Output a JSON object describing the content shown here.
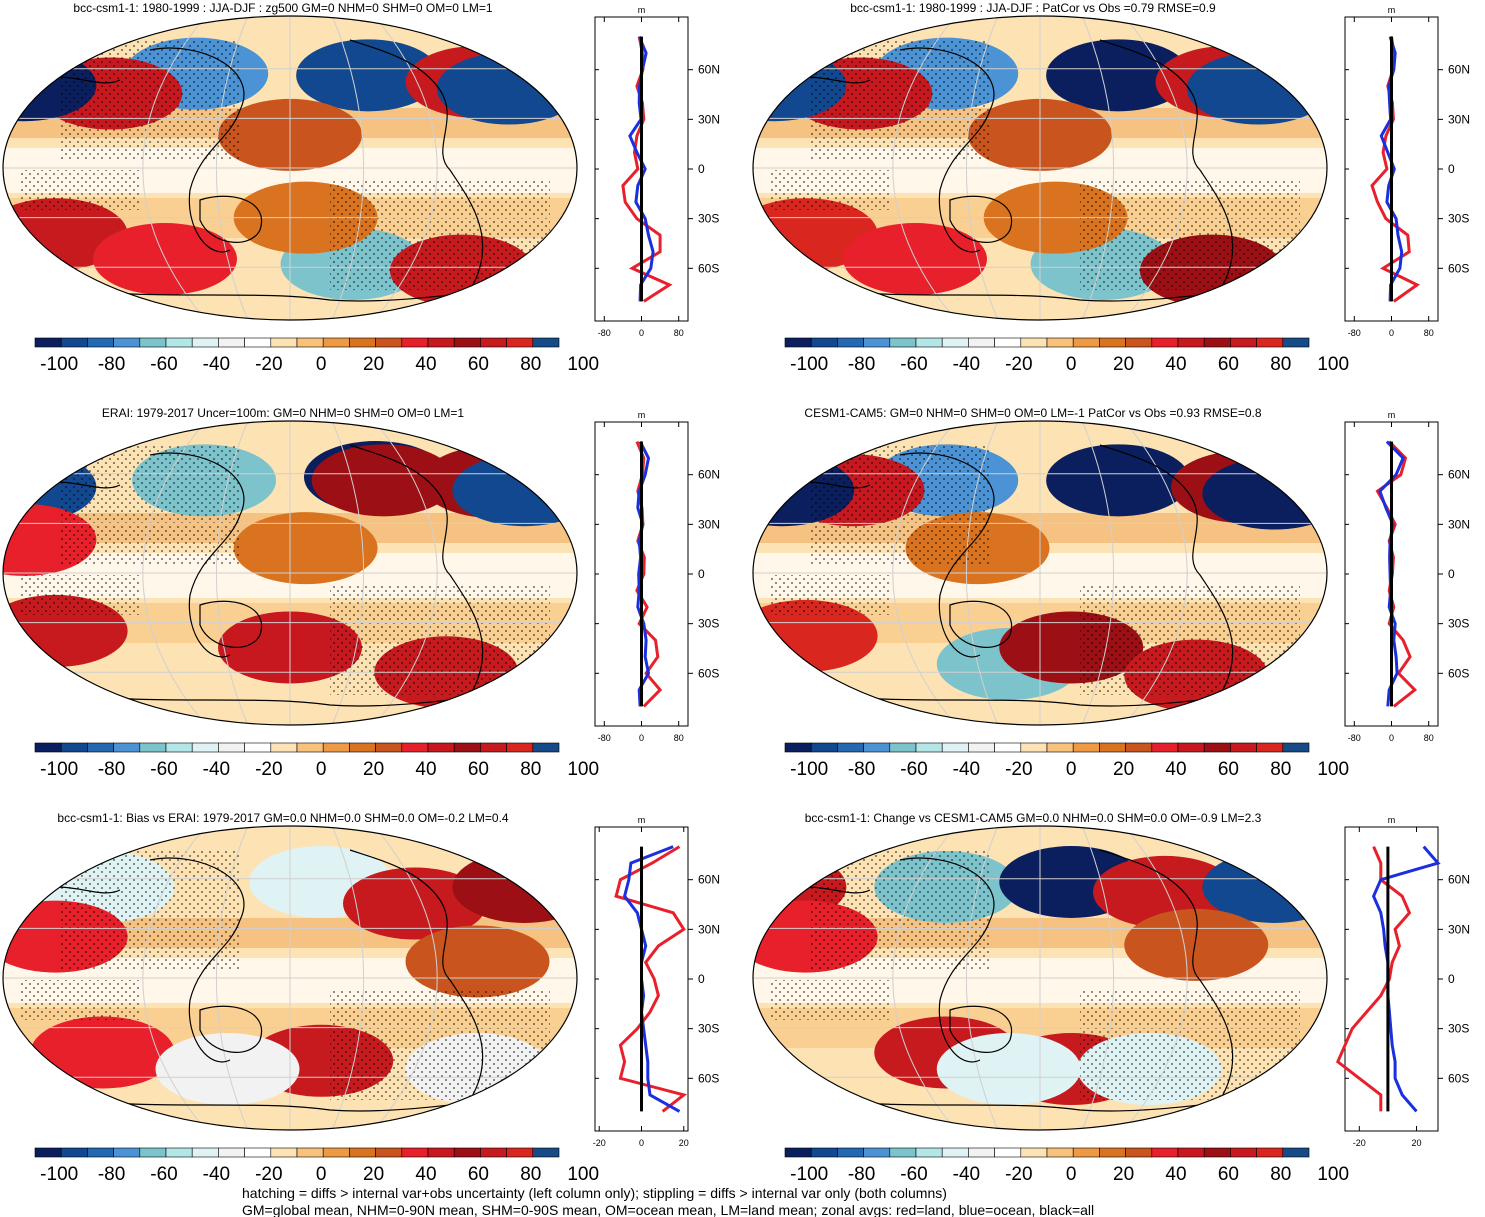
{
  "colorbar": {
    "colors": [
      "#0b1f5e",
      "#12488f",
      "#2468b2",
      "#4b93d4",
      "#7cc3cc",
      "#b3e6e6",
      "#dff3f4",
      "#f2f2f2",
      "#ffffff",
      "#fde3b4",
      "#f9c27c",
      "#ee9a45",
      "#d9731f",
      "#c9541d",
      "#e8202b",
      "#c7171f",
      "#9c0f14",
      "#c61a1e",
      "#d9271f",
      "#164b87"
    ],
    "tick_labels": [
      "-100",
      "-80",
      "-60",
      "-40",
      "-20",
      "0",
      "20",
      "40",
      "60",
      "80",
      "100"
    ]
  },
  "zonal_axis": {
    "unit": "m",
    "lat_labels": [
      "60N",
      "30N",
      "0",
      "30S",
      "60S"
    ],
    "lats": [
      60,
      30,
      0,
      -30,
      -60
    ]
  },
  "footnote": [
    "hatching = diffs > internal var+obs uncertainty (left column only); stippling = diffs > internal var only (both columns)",
    "GM=global mean, NHM=0-90N mean, SHM=0-90S mean, OM=ocean mean, LM=land mean; zonal avgs: red=land, blue=ocean, black=all"
  ],
  "chart_data": [
    {
      "type": "heatmap",
      "title": "bcc-csm1-1: 1980-1999 : JJA-DJF : zg500 GM=0 NHM=0 SHM=0 OM=0 LM=1",
      "zonal_xticks": [
        -80,
        0,
        80
      ],
      "zonal_xlim": [
        -100,
        100
      ],
      "blobs": [
        {
          "lon": -60,
          "lat": 57,
          "v": -70
        },
        {
          "lon": 50,
          "lat": 56,
          "v": -90
        },
        {
          "lon": -115,
          "lat": 45,
          "v": 55
        },
        {
          "lon": 120,
          "lat": 52,
          "v": 70
        },
        {
          "lon": -170,
          "lat": 50,
          "v": -95
        },
        {
          "lon": 140,
          "lat": 48,
          "v": -90
        },
        {
          "lon": 0,
          "lat": 20,
          "v": 35
        },
        {
          "lon": -150,
          "lat": -40,
          "v": 75
        },
        {
          "lon": 40,
          "lat": -58,
          "v": -55
        },
        {
          "lon": 110,
          "lat": -62,
          "v": 70
        },
        {
          "lon": -80,
          "lat": -55,
          "v": 40
        },
        {
          "lon": 10,
          "lat": -30,
          "v": 25
        }
      ],
      "land": [
        [
          -5,
          2,
          3,
          -10,
          2,
          5,
          -10,
          -15,
          -8,
          -40,
          -35,
          -10,
          40,
          40,
          -20,
          60,
          5
        ]
      ],
      "ocean": [
        [
          -5,
          10,
          2,
          -4,
          -5,
          -1,
          -25,
          -10,
          8,
          -8,
          -12,
          8,
          15,
          25,
          20,
          -2,
          -3
        ]
      ],
      "all": [
        [
          0,
          0,
          0,
          0,
          0,
          0,
          0,
          0,
          0,
          0,
          0,
          0,
          0,
          0,
          0,
          0,
          0
        ]
      ]
    },
    {
      "type": "heatmap",
      "title": "bcc-csm1-1: 1980-1999 : JJA-DJF : PatCor vs Obs =0.79 RMSE=0.9",
      "zonal_xticks": [
        -80,
        0,
        80
      ],
      "zonal_xlim": [
        -100,
        100
      ],
      "blobs": [
        {
          "lon": -60,
          "lat": 57,
          "v": -65
        },
        {
          "lon": 50,
          "lat": 56,
          "v": -95
        },
        {
          "lon": -115,
          "lat": 45,
          "v": 55
        },
        {
          "lon": 120,
          "lat": 52,
          "v": 70
        },
        {
          "lon": -170,
          "lat": 50,
          "v": -90
        },
        {
          "lon": 140,
          "lat": 48,
          "v": -90
        },
        {
          "lon": 0,
          "lat": 20,
          "v": 30
        },
        {
          "lon": -150,
          "lat": -40,
          "v": 80
        },
        {
          "lon": 40,
          "lat": -58,
          "v": -60
        },
        {
          "lon": 110,
          "lat": -62,
          "v": 65
        },
        {
          "lon": -80,
          "lat": -55,
          "v": 45
        },
        {
          "lon": 10,
          "lat": -30,
          "v": 25
        }
      ],
      "land": [
        [
          0,
          5,
          3,
          -8,
          2,
          4,
          -12,
          -18,
          -10,
          -42,
          -30,
          -12,
          35,
          38,
          -18,
          55,
          5
        ]
      ],
      "ocean": [
        [
          -3,
          8,
          5,
          -6,
          -4,
          -2,
          -22,
          -8,
          6,
          -6,
          -10,
          10,
          14,
          22,
          18,
          -2,
          -3
        ]
      ],
      "all": [
        [
          0,
          0,
          0,
          0,
          0,
          0,
          0,
          0,
          0,
          0,
          0,
          0,
          0,
          0,
          0,
          0,
          0
        ]
      ]
    },
    {
      "type": "heatmap",
      "title": "ERAI: 1979-2017 Uncer=100m: GM=0 NHM=0 SHM=0 OM=0 LM=1",
      "zonal_xticks": [
        -80,
        0,
        80
      ],
      "zonal_xlim": [
        -100,
        100
      ],
      "blobs": [
        {
          "lon": -55,
          "lat": 56,
          "v": -60
        },
        {
          "lon": 55,
          "lat": 58,
          "v": -95
        },
        {
          "lon": 60,
          "lat": 56,
          "v": 60
        },
        {
          "lon": 130,
          "lat": 55,
          "v": 65
        },
        {
          "lon": -170,
          "lat": 52,
          "v": -90
        },
        {
          "lon": 150,
          "lat": 50,
          "v": -90
        },
        {
          "lon": -150,
          "lat": -35,
          "v": 70
        },
        {
          "lon": 0,
          "lat": -45,
          "v": 55
        },
        {
          "lon": 100,
          "lat": -60,
          "v": 75
        },
        {
          "lon": -170,
          "lat": 20,
          "v": 40
        },
        {
          "lon": 10,
          "lat": 15,
          "v": 20
        }
      ],
      "land": [
        [
          -10,
          5,
          2,
          -8,
          1,
          3,
          -8,
          6,
          5,
          -10,
          12,
          -5,
          30,
          35,
          10,
          40,
          5
        ]
      ],
      "ocean": [
        [
          -3,
          15,
          8,
          -5,
          -8,
          3,
          -5,
          -2,
          -6,
          -5,
          -8,
          5,
          10,
          8,
          15,
          -5,
          -3
        ]
      ],
      "all": [
        [
          0,
          0,
          0,
          0,
          0,
          0,
          0,
          0,
          0,
          0,
          0,
          0,
          0,
          0,
          0,
          0,
          0
        ]
      ]
    },
    {
      "type": "heatmap",
      "title": "CESM1-CAM5: GM=0 NHM=0 SHM=0 OM=0 LM=-1 PatCor vs Obs =0.93 RMSE=0.8",
      "zonal_xticks": [
        -80,
        0,
        80
      ],
      "zonal_xlim": [
        -100,
        100
      ],
      "blobs": [
        {
          "lon": -60,
          "lat": 56,
          "v": -70
        },
        {
          "lon": 50,
          "lat": 56,
          "v": -95
        },
        {
          "lon": -120,
          "lat": 50,
          "v": 55
        },
        {
          "lon": 130,
          "lat": 52,
          "v": 60
        },
        {
          "lon": -165,
          "lat": 50,
          "v": -95
        },
        {
          "lon": 150,
          "lat": 48,
          "v": -95
        },
        {
          "lon": -150,
          "lat": -38,
          "v": 85
        },
        {
          "lon": -20,
          "lat": -55,
          "v": -60
        },
        {
          "lon": 20,
          "lat": -45,
          "v": 60
        },
        {
          "lon": 100,
          "lat": -62,
          "v": 75
        },
        {
          "lon": -40,
          "lat": 15,
          "v": 25
        }
      ],
      "land": [
        [
          -5,
          30,
          20,
          -30,
          -10,
          8,
          -5,
          4,
          2,
          -5,
          5,
          -5,
          25,
          40,
          15,
          50,
          5
        ]
      ],
      "ocean": [
        [
          -10,
          25,
          10,
          -25,
          -12,
          3,
          -3,
          -4,
          -3,
          -2,
          -5,
          8,
          5,
          10,
          12,
          -5,
          -8
        ]
      ],
      "all": [
        [
          0,
          0,
          0,
          0,
          0,
          0,
          0,
          0,
          0,
          0,
          0,
          0,
          0,
          0,
          0,
          0,
          0
        ]
      ]
    },
    {
      "type": "heatmap",
      "title": "bcc-csm1-1: Bias vs ERAI: 1979-2017 GM=0.0 NHM=0.0 SHM=0.0 OM=-0.2 LM=0.4",
      "zonal_xticks": [
        -20,
        0,
        20
      ],
      "zonal_xlim": [
        -22,
        22
      ],
      "blobs": [
        {
          "lon": -170,
          "lat": 55,
          "v": 70
        },
        {
          "lon": -120,
          "lat": 55,
          "v": -40
        },
        {
          "lon": 20,
          "lat": 58,
          "v": -35
        },
        {
          "lon": 80,
          "lat": 45,
          "v": 70
        },
        {
          "lon": 150,
          "lat": 55,
          "v": 60
        },
        {
          "lon": 20,
          "lat": -50,
          "v": 70
        },
        {
          "lon": -120,
          "lat": -45,
          "v": 45
        },
        {
          "lon": -40,
          "lat": -55,
          "v": -30
        },
        {
          "lon": 120,
          "lat": -55,
          "v": -30
        },
        {
          "lon": -150,
          "lat": 25,
          "v": 45
        },
        {
          "lon": 120,
          "lat": 10,
          "v": 35
        }
      ],
      "land": [
        [
          18,
          5,
          -10,
          -12,
          15,
          20,
          8,
          2,
          6,
          8,
          4,
          -2,
          -10,
          -8,
          -10,
          20,
          10
        ]
      ],
      "ocean": [
        [
          15,
          -5,
          -6,
          -8,
          -2,
          0,
          2,
          0,
          0,
          1,
          0,
          1,
          2,
          3,
          3,
          4,
          18
        ]
      ],
      "all": [
        [
          0,
          0,
          0,
          0,
          0,
          0,
          0,
          0,
          0,
          0,
          0,
          0,
          0,
          0,
          0,
          0,
          0
        ]
      ]
    },
    {
      "type": "heatmap",
      "title": "bcc-csm1-1: Change vs CESM1-CAM5 GM=0.0 NHM=0.0 SHM=0.0 OM=-0.9 LM=2.3",
      "zonal_xticks": [
        -20,
        20
      ],
      "zonal_xlim": [
        -30,
        35
      ],
      "blobs": [
        {
          "lon": -170,
          "lat": 55,
          "v": 70
        },
        {
          "lon": -60,
          "lat": 55,
          "v": -60
        },
        {
          "lon": 20,
          "lat": 58,
          "v": -95
        },
        {
          "lon": 80,
          "lat": 52,
          "v": 70
        },
        {
          "lon": 150,
          "lat": 55,
          "v": -90
        },
        {
          "lon": -60,
          "lat": -45,
          "v": 70
        },
        {
          "lon": 20,
          "lat": -55,
          "v": 75
        },
        {
          "lon": -20,
          "lat": -55,
          "v": -40
        },
        {
          "lon": 70,
          "lat": -55,
          "v": -35
        },
        {
          "lon": -150,
          "lat": 25,
          "v": 40
        },
        {
          "lon": 100,
          "lat": 20,
          "v": 30
        }
      ],
      "land": [
        [
          -10,
          -5,
          -5,
          10,
          15,
          5,
          8,
          3,
          1,
          -5,
          -15,
          -25,
          -30,
          -35,
          -20,
          -5,
          -5
        ]
      ],
      "ocean": [
        [
          25,
          35,
          -5,
          -10,
          -5,
          -3,
          -2,
          0,
          0,
          0,
          1,
          2,
          3,
          5,
          5,
          10,
          20
        ]
      ],
      "all": [
        [
          0,
          0,
          0,
          0,
          0,
          0,
          0,
          0,
          0,
          0,
          0,
          0,
          0,
          0,
          0,
          0,
          0
        ]
      ]
    }
  ]
}
